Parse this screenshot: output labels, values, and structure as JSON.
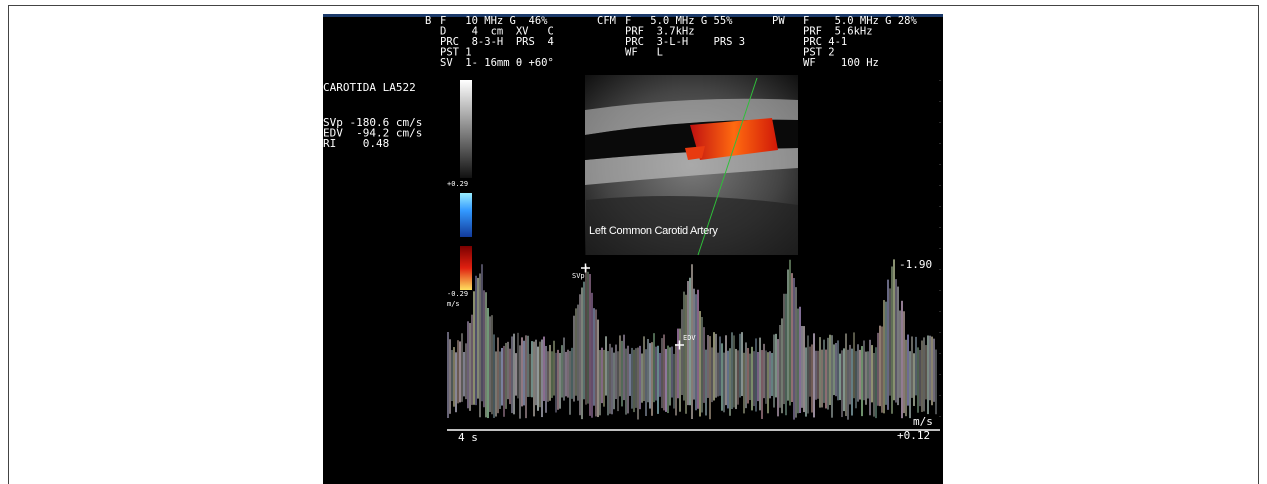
{
  "header": {
    "b_mode": {
      "label": "B",
      "lines": [
        "F   10 MHz G  46%",
        "D    4  cm  XV   C",
        "PRC  8-3-H  PRS  4",
        "PST 1",
        "SV  1- 16mm θ +60°"
      ]
    },
    "cfm": {
      "label": "CFM",
      "lines": [
        "F   5.0 MHz G 55%",
        "PRF  3.7kHz",
        "PRC  3-L-H    PRS 3",
        "WF   L"
      ]
    },
    "pw": {
      "label": "PW",
      "lines": [
        "F    5.0 MHz G 28%",
        "PRF  5.6kHz",
        "PRC 4-1",
        "PST 2",
        "WF    100 Hz"
      ]
    }
  },
  "measurements": {
    "title": "CAROTIDA LA522",
    "lines": [
      "SVp -180.6 cm/s",
      "EDV  -94.2 cm/s",
      "RI    0.48"
    ]
  },
  "color_scale": {
    "top": "+0.29",
    "bottom": "-0.29",
    "unit": "m/s"
  },
  "image_label": "Left Common Carotid Artery",
  "markers": {
    "svp": "SVp",
    "edv": "EDV"
  },
  "spectral": {
    "top": "-1.90",
    "unit": "m/s",
    "baseline": "+0.12",
    "time": "4 s"
  }
}
